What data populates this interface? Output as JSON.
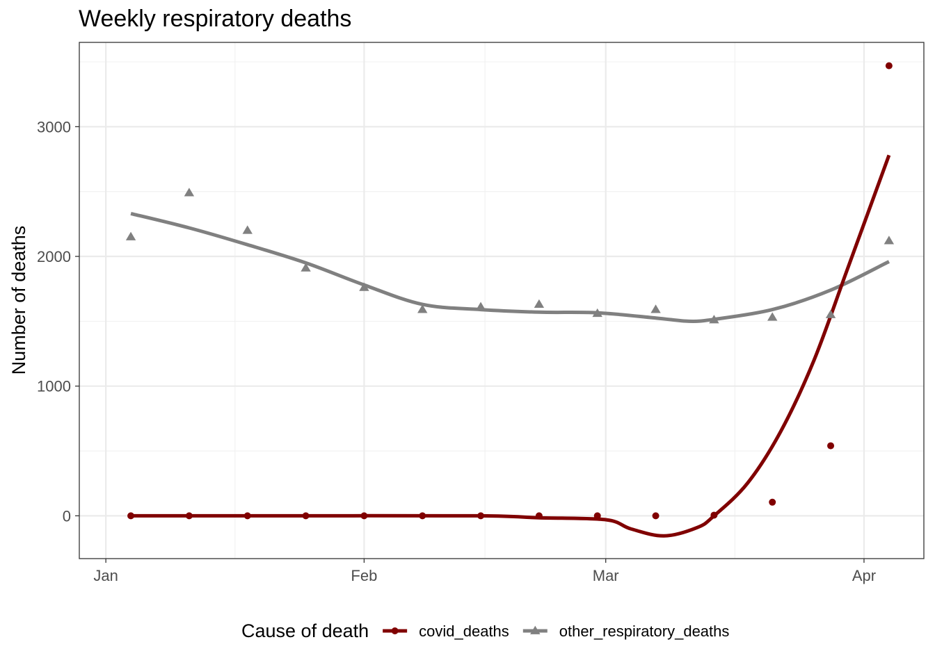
{
  "chart_data": {
    "type": "scatter",
    "title": "Weekly respiratory deaths",
    "xlabel": "",
    "ylabel": "Number of deaths",
    "x_axis": {
      "type": "date",
      "range": [
        "2020-01-02",
        "2020-04-04"
      ],
      "ticks": [
        {
          "date": "2020-01-01",
          "label": "Jan"
        },
        {
          "date": "2020-02-01",
          "label": "Feb"
        },
        {
          "date": "2020-03-01",
          "label": "Mar"
        },
        {
          "date": "2020-04-01",
          "label": "Apr"
        }
      ]
    },
    "y_axis": {
      "range": [
        -330,
        3650
      ],
      "ticks": [
        0,
        1000,
        2000,
        3000
      ],
      "tick_labels": [
        "0",
        "1000",
        "2000",
        "3000"
      ]
    },
    "grid": true,
    "legend": {
      "position": "bottom",
      "title": "Cause of death"
    },
    "series": [
      {
        "name": "covid_deaths",
        "color": "#800000",
        "marker": "circle",
        "points": [
          {
            "x": "2020-01-04",
            "y": 0
          },
          {
            "x": "2020-01-11",
            "y": 0
          },
          {
            "x": "2020-01-18",
            "y": 0
          },
          {
            "x": "2020-01-25",
            "y": 0
          },
          {
            "x": "2020-02-01",
            "y": 0
          },
          {
            "x": "2020-02-08",
            "y": 0
          },
          {
            "x": "2020-02-15",
            "y": 0
          },
          {
            "x": "2020-02-22",
            "y": 0
          },
          {
            "x": "2020-02-29",
            "y": 0
          },
          {
            "x": "2020-03-07",
            "y": 0
          },
          {
            "x": "2020-03-14",
            "y": 5
          },
          {
            "x": "2020-03-21",
            "y": 105
          },
          {
            "x": "2020-03-28",
            "y": 540
          },
          {
            "x": "2020-04-04",
            "y": 3470
          }
        ],
        "smooth": [
          {
            "x": "2020-01-04",
            "y": 0
          },
          {
            "x": "2020-01-25",
            "y": 0
          },
          {
            "x": "2020-02-15",
            "y": 0
          },
          {
            "x": "2020-02-22",
            "y": -15
          },
          {
            "x": "2020-03-01",
            "y": -30
          },
          {
            "x": "2020-03-04",
            "y": -100
          },
          {
            "x": "2020-03-08",
            "y": -155
          },
          {
            "x": "2020-03-12",
            "y": -90
          },
          {
            "x": "2020-03-14",
            "y": 0
          },
          {
            "x": "2020-03-18",
            "y": 250
          },
          {
            "x": "2020-03-22",
            "y": 650
          },
          {
            "x": "2020-03-26",
            "y": 1200
          },
          {
            "x": "2020-03-30",
            "y": 1900
          },
          {
            "x": "2020-04-04",
            "y": 2780
          }
        ]
      },
      {
        "name": "other_respiratory_deaths",
        "color": "#808080",
        "marker": "triangle",
        "points": [
          {
            "x": "2020-01-04",
            "y": 2150
          },
          {
            "x": "2020-01-11",
            "y": 2490
          },
          {
            "x": "2020-01-18",
            "y": 2200
          },
          {
            "x": "2020-01-25",
            "y": 1910
          },
          {
            "x": "2020-02-01",
            "y": 1760
          },
          {
            "x": "2020-02-08",
            "y": 1590
          },
          {
            "x": "2020-02-15",
            "y": 1610
          },
          {
            "x": "2020-02-22",
            "y": 1630
          },
          {
            "x": "2020-02-29",
            "y": 1560
          },
          {
            "x": "2020-03-07",
            "y": 1590
          },
          {
            "x": "2020-03-14",
            "y": 1510
          },
          {
            "x": "2020-03-21",
            "y": 1530
          },
          {
            "x": "2020-03-28",
            "y": 1550
          },
          {
            "x": "2020-04-04",
            "y": 2120
          }
        ],
        "smooth": [
          {
            "x": "2020-01-04",
            "y": 2330
          },
          {
            "x": "2020-01-11",
            "y": 2220
          },
          {
            "x": "2020-01-18",
            "y": 2090
          },
          {
            "x": "2020-01-25",
            "y": 1950
          },
          {
            "x": "2020-02-01",
            "y": 1780
          },
          {
            "x": "2020-02-08",
            "y": 1630
          },
          {
            "x": "2020-02-15",
            "y": 1590
          },
          {
            "x": "2020-02-22",
            "y": 1570
          },
          {
            "x": "2020-02-29",
            "y": 1565
          },
          {
            "x": "2020-03-07",
            "y": 1525
          },
          {
            "x": "2020-03-11",
            "y": 1500
          },
          {
            "x": "2020-03-14",
            "y": 1515
          },
          {
            "x": "2020-03-21",
            "y": 1590
          },
          {
            "x": "2020-03-28",
            "y": 1740
          },
          {
            "x": "2020-04-04",
            "y": 1960
          }
        ]
      }
    ]
  }
}
